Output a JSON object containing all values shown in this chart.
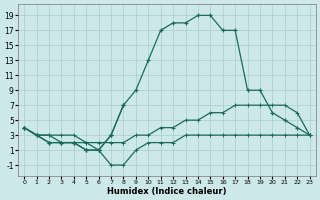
{
  "xlabel": "Humidex (Indice chaleur)",
  "xlim": [
    -0.5,
    23.5
  ],
  "ylim": [
    -2.5,
    20.5
  ],
  "yticks": [
    -1,
    1,
    3,
    5,
    7,
    9,
    11,
    13,
    15,
    17,
    19
  ],
  "xticks": [
    0,
    1,
    2,
    3,
    4,
    5,
    6,
    7,
    8,
    9,
    10,
    11,
    12,
    13,
    14,
    15,
    16,
    17,
    18,
    19,
    20,
    21,
    22,
    23
  ],
  "bg_color": "#cde8e8",
  "grid_color": "#aacaca",
  "line_color": "#1a6b5a",
  "line1_x": [
    0,
    1,
    2,
    3,
    4,
    5,
    6,
    7,
    8,
    9,
    10,
    11,
    12,
    13,
    14,
    15,
    16,
    17,
    18,
    19,
    20,
    21,
    22,
    23
  ],
  "line1_y": [
    4,
    3,
    2,
    2,
    2,
    1,
    1,
    3,
    7,
    9,
    13,
    17,
    18,
    18,
    19,
    19,
    17,
    17,
    9,
    9,
    6,
    5,
    4,
    3
  ],
  "line2_x": [
    0,
    1,
    2,
    3,
    4,
    5,
    6,
    7,
    8
  ],
  "line2_y": [
    4,
    3,
    2,
    2,
    2,
    1,
    1,
    3,
    7
  ],
  "line3_x": [
    0,
    1,
    2,
    3,
    4,
    5,
    6,
    7,
    8,
    9,
    10,
    11,
    12,
    13,
    14,
    15,
    16,
    17,
    18,
    19,
    20,
    21,
    22,
    23
  ],
  "line3_y": [
    4,
    3,
    3,
    3,
    3,
    2,
    2,
    2,
    2,
    3,
    3,
    4,
    4,
    5,
    5,
    6,
    6,
    7,
    7,
    7,
    7,
    7,
    6,
    3
  ],
  "line4_x": [
    0,
    1,
    2,
    3,
    4,
    5,
    6,
    7,
    8,
    9,
    10,
    11,
    12,
    13,
    14,
    15,
    16,
    17,
    18,
    19,
    20,
    21,
    22,
    23
  ],
  "line4_y": [
    4,
    3,
    3,
    2,
    2,
    2,
    1,
    -1,
    -1,
    1,
    2,
    2,
    2,
    3,
    3,
    3,
    3,
    3,
    3,
    3,
    3,
    3,
    3,
    3
  ]
}
